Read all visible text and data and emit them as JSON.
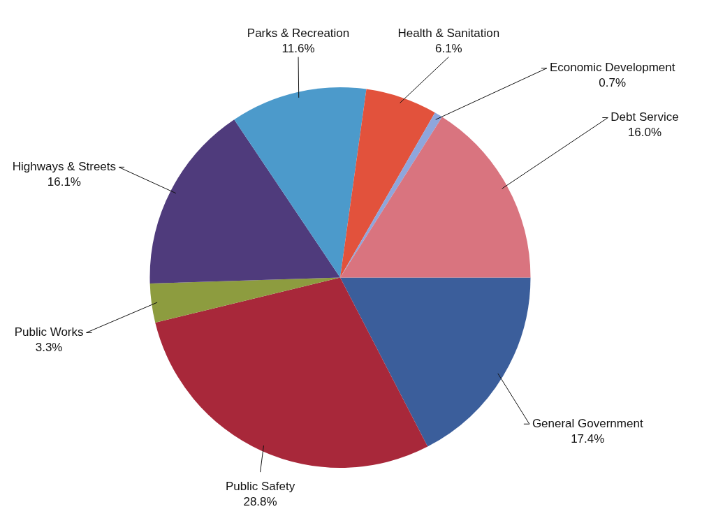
{
  "chart_data": {
    "type": "pie",
    "categories": [
      "General Government",
      "Public Safety",
      "Public Works",
      "Highways & Streets",
      "Parks & Recreation",
      "Health & Sanitation",
      "Economic Development",
      "Debt Service"
    ],
    "values": [
      17.4,
      28.8,
      3.3,
      16.1,
      11.6,
      6.1,
      0.7,
      16.0
    ],
    "colors": [
      "#3b5e9b",
      "#a8283a",
      "#8d9c3f",
      "#4f3b7c",
      "#4c9acb",
      "#e2523c",
      "#8ea6dc",
      "#d9747f"
    ],
    "value_labels": [
      "17.4%",
      "28.8%",
      "3.3%",
      "16.1%",
      "11.6%",
      "6.1%",
      "0.7%",
      "16.0%"
    ],
    "legend": false
  }
}
